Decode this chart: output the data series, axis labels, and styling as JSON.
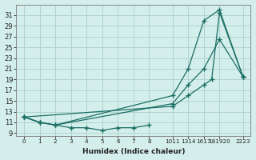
{
  "xlabel": "Humidex (Indice chaleur)",
  "bg_color": "#d4eeeb",
  "grid_color": "#b0d4d0",
  "line_color": "#1a6e64",
  "xlim": [
    -0.5,
    14.5
  ],
  "ylim": [
    8.5,
    33
  ],
  "xtick_positions": [
    0,
    1,
    2,
    3,
    4,
    5,
    6,
    7,
    8,
    9.5,
    10.5,
    11.5,
    12.5,
    14.0
  ],
  "xtick_labels": [
    "0",
    "1",
    "2",
    "3",
    "4",
    "5",
    "6",
    "7",
    "8",
    "1011",
    "1314",
    "1617",
    "181920",
    "2223"
  ],
  "yticks": [
    9,
    11,
    13,
    15,
    17,
    19,
    21,
    23,
    25,
    27,
    29,
    31
  ],
  "ytick_labels": [
    "9",
    "11",
    "13",
    "15",
    "17",
    "19",
    "21",
    "23",
    "25",
    "27",
    "29",
    "31"
  ],
  "line1_x": [
    0,
    1,
    2,
    3,
    4,
    5,
    6,
    7,
    8
  ],
  "line1_y": [
    12,
    11,
    10.5,
    10,
    10,
    9.5,
    10,
    10,
    10.5
  ],
  "line2_x": [
    0,
    1,
    2,
    9.5,
    10.5,
    11.5,
    12.5,
    14.0
  ],
  "line2_y": [
    12,
    11,
    10.5,
    14.5,
    18,
    21,
    26.5,
    19.5
  ],
  "line3_x": [
    0,
    1,
    2,
    9.5,
    10.5,
    11.5,
    12.5,
    14.0
  ],
  "line3_y": [
    12,
    11,
    10.5,
    16,
    21,
    30,
    32,
    19.5
  ],
  "line4_x": [
    0,
    9.5,
    10.5,
    11.5,
    12.0,
    12.5,
    14.0
  ],
  "line4_y": [
    12,
    14,
    16,
    18,
    19,
    31.5,
    19.5
  ]
}
